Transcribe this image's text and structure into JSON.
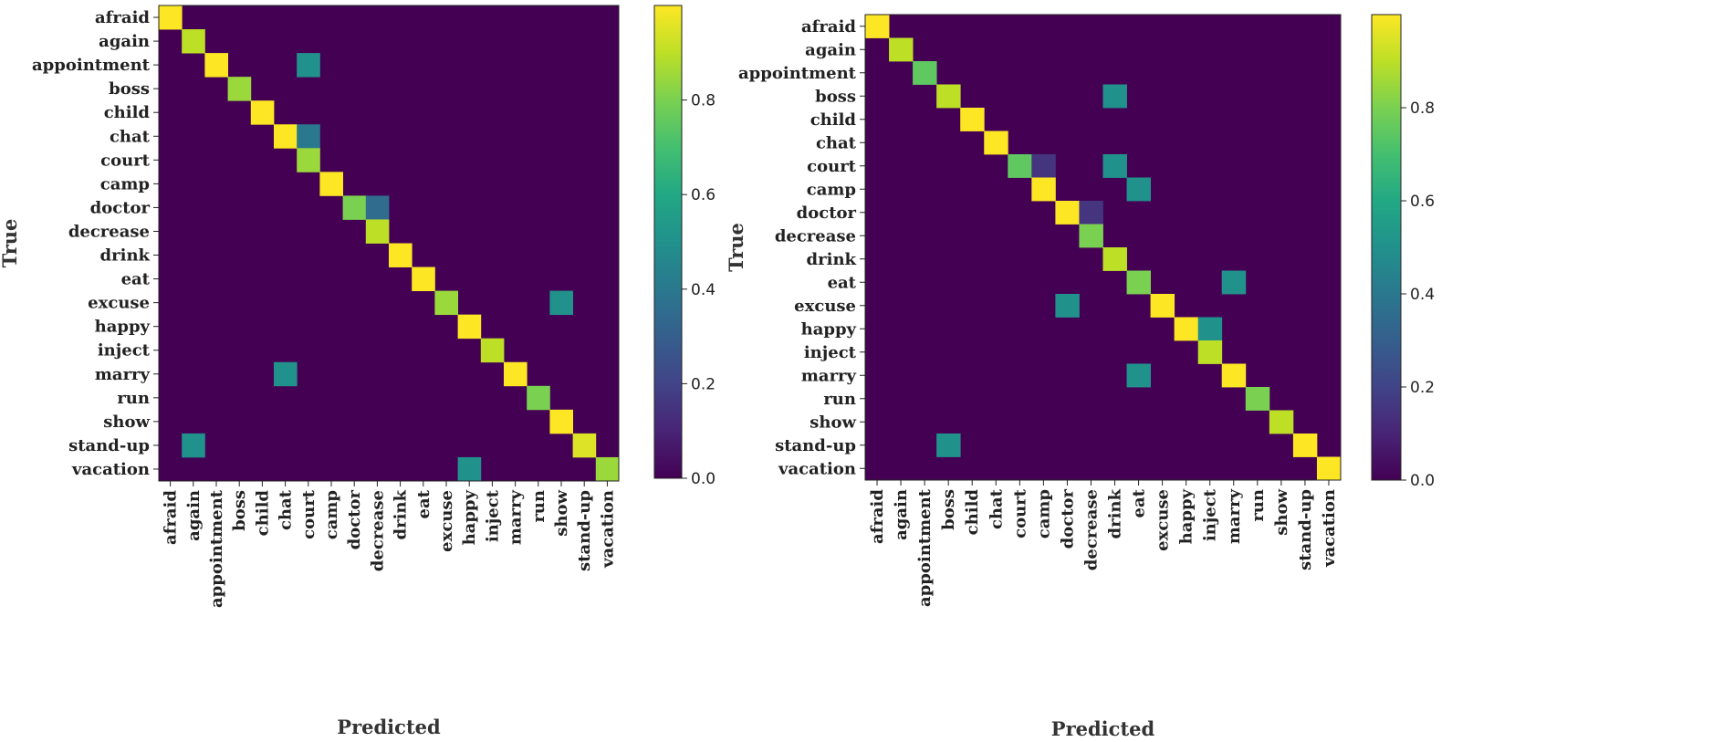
{
  "chart_data": [
    {
      "type": "heatmap",
      "title": "",
      "xlabel": "Predicted",
      "ylabel": "True",
      "labels": [
        "afraid",
        "again",
        "appointment",
        "boss",
        "child",
        "chat",
        "court",
        "camp",
        "doctor",
        "decrease",
        "drink",
        "eat",
        "excuse",
        "happy",
        "inject",
        "marry",
        "run",
        "show",
        "stand-up",
        "vacation"
      ],
      "colorbar": {
        "range": [
          0,
          1
        ],
        "ticks": [
          0.0,
          0.2,
          0.4,
          0.6,
          0.8
        ],
        "tick_labels": [
          "0.0",
          "0.2",
          "0.4",
          "0.6",
          "0.8"
        ],
        "colormap": "viridis"
      },
      "cells": [
        [
          0,
          0,
          1.0
        ],
        [
          1,
          1,
          0.9
        ],
        [
          2,
          2,
          1.0
        ],
        [
          2,
          6,
          0.5
        ],
        [
          3,
          3,
          0.85
        ],
        [
          4,
          4,
          1.0
        ],
        [
          5,
          5,
          1.0
        ],
        [
          5,
          6,
          0.4
        ],
        [
          6,
          6,
          0.85
        ],
        [
          7,
          7,
          1.0
        ],
        [
          8,
          8,
          0.8
        ],
        [
          8,
          9,
          0.35
        ],
        [
          9,
          9,
          0.9
        ],
        [
          10,
          10,
          1.0
        ],
        [
          11,
          11,
          1.0
        ],
        [
          12,
          12,
          0.85
        ],
        [
          12,
          17,
          0.5
        ],
        [
          13,
          13,
          1.0
        ],
        [
          14,
          14,
          0.9
        ],
        [
          15,
          5,
          0.5
        ],
        [
          15,
          15,
          1.0
        ],
        [
          16,
          16,
          0.8
        ],
        [
          17,
          17,
          1.0
        ],
        [
          18,
          1,
          0.5
        ],
        [
          18,
          18,
          0.95
        ],
        [
          19,
          13,
          0.5
        ],
        [
          19,
          19,
          0.85
        ]
      ]
    },
    {
      "type": "heatmap",
      "title": "",
      "xlabel": "Predicted",
      "ylabel": "True",
      "labels": [
        "afraid",
        "again",
        "appointment",
        "boss",
        "child",
        "chat",
        "court",
        "camp",
        "doctor",
        "decrease",
        "drink",
        "eat",
        "excuse",
        "happy",
        "inject",
        "marry",
        "run",
        "show",
        "stand-up",
        "vacation"
      ],
      "colorbar": {
        "range": [
          0,
          1
        ],
        "ticks": [
          0.0,
          0.2,
          0.4,
          0.6,
          0.8
        ],
        "tick_labels": [
          "0.0",
          "0.2",
          "0.4",
          "0.6",
          "0.8"
        ],
        "colormap": "viridis"
      },
      "cells": [
        [
          0,
          0,
          1.0
        ],
        [
          1,
          1,
          0.9
        ],
        [
          2,
          2,
          0.75
        ],
        [
          3,
          3,
          0.9
        ],
        [
          3,
          10,
          0.5
        ],
        [
          4,
          4,
          1.0
        ],
        [
          5,
          5,
          1.0
        ],
        [
          6,
          6,
          0.75
        ],
        [
          6,
          7,
          0.15
        ],
        [
          6,
          10,
          0.5
        ],
        [
          7,
          7,
          1.0
        ],
        [
          7,
          11,
          0.5
        ],
        [
          8,
          8,
          1.0
        ],
        [
          8,
          9,
          0.15
        ],
        [
          9,
          9,
          0.8
        ],
        [
          10,
          10,
          0.9
        ],
        [
          11,
          11,
          0.8
        ],
        [
          11,
          15,
          0.5
        ],
        [
          12,
          8,
          0.5
        ],
        [
          12,
          12,
          1.0
        ],
        [
          13,
          13,
          1.0
        ],
        [
          13,
          14,
          0.5
        ],
        [
          14,
          14,
          0.9
        ],
        [
          15,
          11,
          0.5
        ],
        [
          15,
          15,
          1.0
        ],
        [
          16,
          16,
          0.8
        ],
        [
          17,
          17,
          0.9
        ],
        [
          18,
          3,
          0.5
        ],
        [
          18,
          18,
          1.0
        ],
        [
          19,
          19,
          1.0
        ]
      ]
    }
  ]
}
